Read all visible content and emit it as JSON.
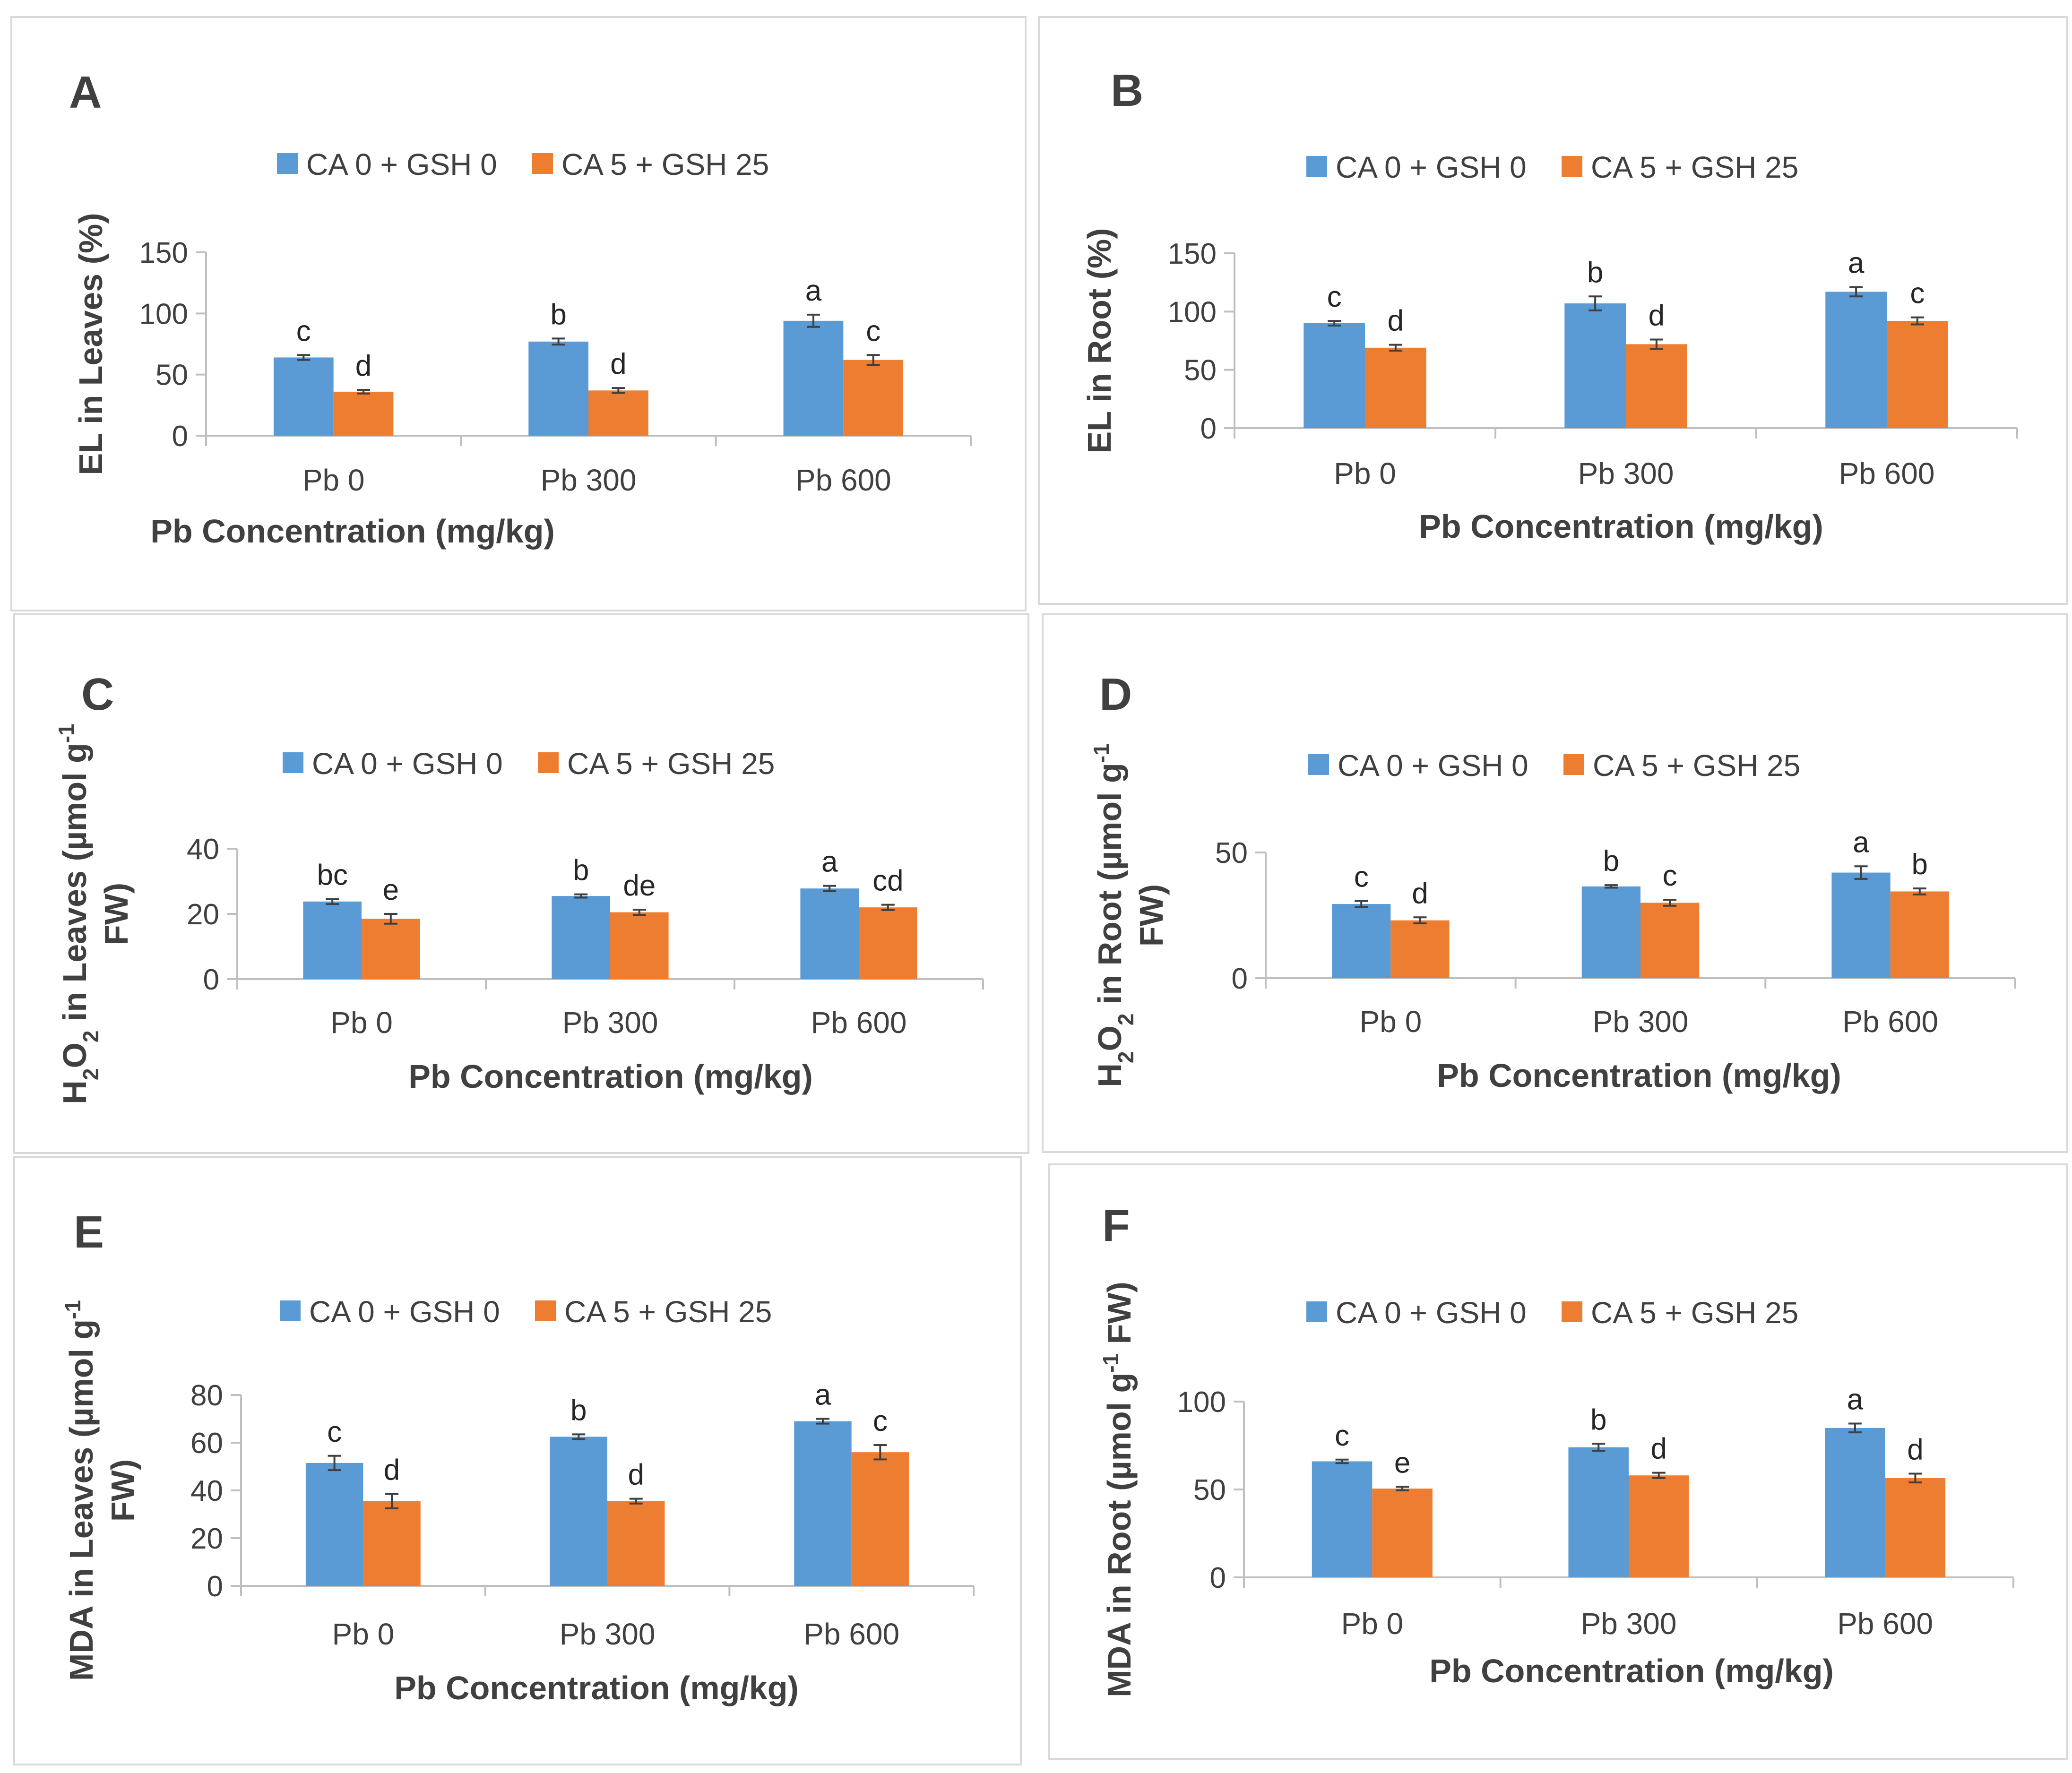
{
  "legend": [
    {
      "name": "CA 0 + GSH 0",
      "color": "#5b9bd5"
    },
    {
      "name": "CA 5 + GSH 25",
      "color": "#ed7d31"
    }
  ],
  "chart_data": [
    {
      "panel_label": "A",
      "type": "bar",
      "title": "",
      "xlabel": "Pb Concentration (mg/kg)",
      "ylabel_parts": [
        {
          "text": "EL in Leaves (%)"
        }
      ],
      "categories": [
        "Pb 0",
        "Pb 300",
        "Pb 600"
      ],
      "yticks": [
        0,
        50,
        100,
        150
      ],
      "ylim": [
        0,
        150
      ],
      "series": [
        {
          "name": "CA 0 + GSH 0",
          "values": [
            64,
            77,
            94
          ],
          "errors": [
            2,
            2.5,
            5
          ],
          "letters": [
            "c",
            "b",
            "a"
          ]
        },
        {
          "name": "CA 5 + GSH 25",
          "values": [
            36,
            37,
            62
          ],
          "errors": [
            1.5,
            2,
            4
          ],
          "letters": [
            "d",
            "d",
            "c"
          ]
        }
      ]
    },
    {
      "panel_label": "B",
      "type": "bar",
      "title": "",
      "xlabel": "Pb Concentration (mg/kg)",
      "ylabel_parts": [
        {
          "text": "EL in Root (%)"
        }
      ],
      "categories": [
        "Pb 0",
        "Pb 300",
        "Pb 600"
      ],
      "yticks": [
        0,
        50,
        100,
        150
      ],
      "ylim": [
        0,
        150
      ],
      "series": [
        {
          "name": "CA 0 + GSH 0",
          "values": [
            90,
            107,
            117
          ],
          "errors": [
            2,
            6,
            4
          ],
          "letters": [
            "c",
            "b",
            "a"
          ]
        },
        {
          "name": "CA 5 + GSH 25",
          "values": [
            69,
            72,
            92
          ],
          "errors": [
            2.5,
            4,
            3
          ],
          "letters": [
            "d",
            "d",
            "c"
          ]
        }
      ]
    },
    {
      "panel_label": "C",
      "type": "bar",
      "title": "",
      "xlabel": "Pb Concentration (mg/kg)",
      "ylabel_parts": [
        {
          "text": "H"
        },
        {
          "text": "2",
          "sub": true
        },
        {
          "text": "O"
        },
        {
          "text": "2",
          "sub": true
        },
        {
          "text": " in Leaves (µmol g"
        },
        {
          "text": "-1",
          "sup": true
        }
      ],
      "ylabel_line2": "FW)",
      "categories": [
        "Pb 0",
        "Pb 300",
        "Pb 600"
      ],
      "yticks": [
        0,
        20,
        40
      ],
      "ylim": [
        0,
        40
      ],
      "series": [
        {
          "name": "CA 0 + GSH 0",
          "values": [
            23.8,
            25.5,
            27.8
          ],
          "errors": [
            0.8,
            0.5,
            0.8
          ],
          "letters": [
            "bc",
            "b",
            "a"
          ]
        },
        {
          "name": "CA 5 + GSH 25",
          "values": [
            18.5,
            20.5,
            22
          ],
          "errors": [
            1.5,
            0.8,
            0.8
          ],
          "letters": [
            "e",
            "de",
            "cd"
          ]
        }
      ]
    },
    {
      "panel_label": "D",
      "type": "bar",
      "title": "",
      "xlabel": "Pb Concentration (mg/kg)",
      "ylabel_parts": [
        {
          "text": "H"
        },
        {
          "text": "2",
          "sub": true
        },
        {
          "text": "O"
        },
        {
          "text": "2",
          "sub": true
        },
        {
          "text": " in Root (µmol g"
        },
        {
          "text": "-1",
          "sup": true
        }
      ],
      "ylabel_line2": "FW)",
      "categories": [
        "Pb 0",
        "Pb 300",
        "Pb 600"
      ],
      "yticks": [
        0,
        50
      ],
      "ylim": [
        0,
        50
      ],
      "series": [
        {
          "name": "CA 0 + GSH 0",
          "values": [
            29.5,
            36.5,
            42
          ],
          "errors": [
            1.2,
            0.5,
            2.5
          ],
          "letters": [
            "c",
            "b",
            "a"
          ]
        },
        {
          "name": "CA 5 + GSH 25",
          "values": [
            23,
            30,
            34.5
          ],
          "errors": [
            1.2,
            1.2,
            1.2
          ],
          "letters": [
            "d",
            "c",
            "b"
          ]
        }
      ]
    },
    {
      "panel_label": "E",
      "type": "bar",
      "title": "",
      "xlabel": "Pb Concentration (mg/kg)",
      "ylabel_parts": [
        {
          "text": "MDA in Leaves (µmol g"
        },
        {
          "text": "-1",
          "sup": true
        }
      ],
      "ylabel_line2": "FW)",
      "categories": [
        "Pb 0",
        "Pb 300",
        "Pb 600"
      ],
      "yticks": [
        0,
        20,
        40,
        60,
        80
      ],
      "ylim": [
        0,
        80
      ],
      "series": [
        {
          "name": "CA 0 + GSH 0",
          "values": [
            51.5,
            62.5,
            69
          ],
          "errors": [
            3,
            1,
            1
          ],
          "letters": [
            "c",
            "b",
            "a"
          ]
        },
        {
          "name": "CA 5 + GSH 25",
          "values": [
            35.5,
            35.5,
            56
          ],
          "errors": [
            3,
            1,
            3
          ],
          "letters": [
            "d",
            "d",
            "c"
          ]
        }
      ]
    },
    {
      "panel_label": "F",
      "type": "bar",
      "title": "",
      "xlabel": "Pb Concentration (mg/kg)",
      "ylabel_parts": [
        {
          "text": "MDA in Root (µmol g"
        },
        {
          "text": "-1",
          "sup": true
        },
        {
          "text": " FW)"
        }
      ],
      "categories": [
        "Pb 0",
        "Pb 300",
        "Pb 600"
      ],
      "yticks": [
        0,
        50,
        100
      ],
      "ylim": [
        0,
        100
      ],
      "series": [
        {
          "name": "CA 0 + GSH 0",
          "values": [
            66,
            74,
            85
          ],
          "errors": [
            1,
            2,
            2.5
          ],
          "letters": [
            "c",
            "b",
            "a"
          ]
        },
        {
          "name": "CA 5 + GSH 25",
          "values": [
            50.5,
            58,
            56.5
          ],
          "errors": [
            1,
            1.5,
            2.5
          ],
          "letters": [
            "e",
            "d",
            "d"
          ]
        }
      ]
    }
  ]
}
